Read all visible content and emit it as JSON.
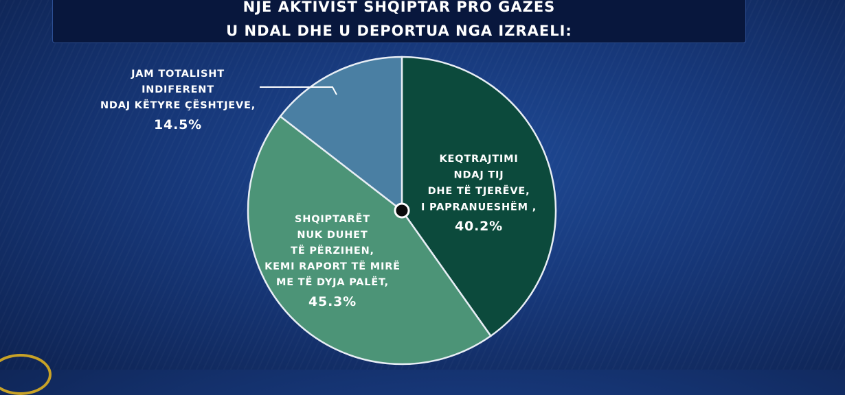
{
  "header": {
    "title_line1": "NJË AKTIVIST SHQIPTAR PRO GAZËS",
    "title_line2": "U NDAL DHE U DEPORTUA NGA IZRAELI:"
  },
  "chart_data": {
    "type": "pie",
    "slices": [
      {
        "label_lines": [
          "KEQTRAJTIMI",
          "NDAJ TIJ",
          "DHE TË TJERËVE,",
          "I PAPRANUESHËM ,"
        ],
        "value": 40.2,
        "value_text": "40.2%",
        "color": "#0c4a3c"
      },
      {
        "label_lines": [
          "SHQIPTARËT",
          "NUK DUHET",
          "TË PËRZIHEN,",
          "KEMI RAPORT TË MIRË",
          "ME TË DYJA PALËT,"
        ],
        "value": 45.3,
        "value_text": "45.3%",
        "color": "#4c9477"
      },
      {
        "label_lines": [
          "JAM TOTALISHT",
          "INDIFERENT",
          "NDAJ KËTYRE ÇËSHTJEVE,"
        ],
        "value": 14.5,
        "value_text": "14.5%",
        "color": "#4a7fa3"
      }
    ]
  },
  "colors": {
    "background": "#17387a",
    "title_bar": "#08173d",
    "slice_border": "#e8eef5"
  }
}
